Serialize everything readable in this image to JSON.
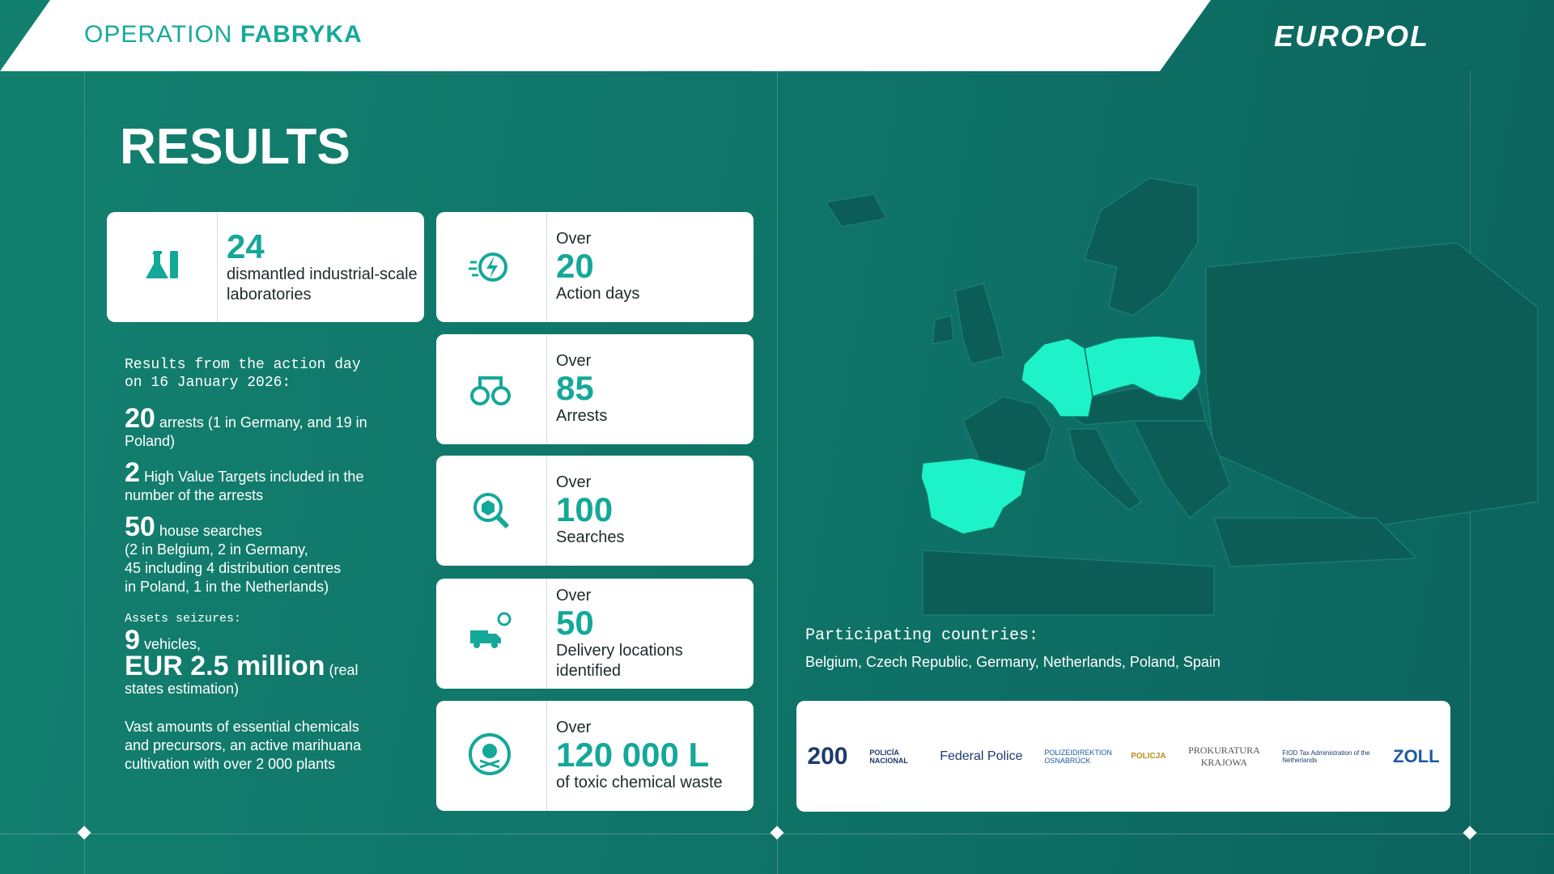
{
  "header": {
    "operation": "OPERATION",
    "name": "FABRYKA",
    "logo": "EUROPOL"
  },
  "title": "RESULTS",
  "stats": [
    {
      "number": "24",
      "label": "dismantled industrial-scale laboratories"
    },
    {
      "qualifier": "Over",
      "number": "20",
      "label": "Action days"
    },
    {
      "qualifier": "Over",
      "number": "85",
      "label": "Arrests"
    },
    {
      "qualifier": "Over",
      "number": "100",
      "label": "Searches"
    },
    {
      "qualifier": "Over",
      "number": "50",
      "label": "Delivery locations identified"
    },
    {
      "qualifier": "Over",
      "number": "120 000 L",
      "label": "of toxic chemical waste"
    }
  ],
  "action_day": {
    "heading": "Results from the action day on 16 January 2026:",
    "items": [
      {
        "number": "20",
        "text": "arrests (1 in Germany, and 19 in Poland)"
      },
      {
        "number": "2",
        "text": "High Value Targets included in the number of the arrests"
      },
      {
        "number": "50",
        "text": "house searches",
        "detail_lines": [
          "(2 in Belgium, 2 in Germany,",
          "45 including 4 distribution centres",
          "in Poland, 1 in the Netherlands)"
        ]
      }
    ],
    "assets_heading": "Assets seizures:",
    "assets": [
      {
        "number": "9",
        "text": "vehicles,"
      },
      {
        "number": "EUR 2.5 million",
        "text": "(real states estimation)"
      }
    ],
    "note": "Vast amounts of essential chemicals and precursors, an active marihuana cultivation with over 2 000 plants"
  },
  "participating": {
    "heading": "Participating countries:",
    "countries": "Belgium, Czech Republic, Germany, Netherlands, Poland, Spain"
  },
  "logos": [
    "200",
    "POLICÍA NACIONAL",
    "Federal Police",
    "POLIZEIDIREKTION OSNABRÜCK",
    "POLICJA",
    "PROKURATURA KRAJOWA",
    "FIOD Tax Administration of the Netherlands",
    "ZOLL"
  ]
}
